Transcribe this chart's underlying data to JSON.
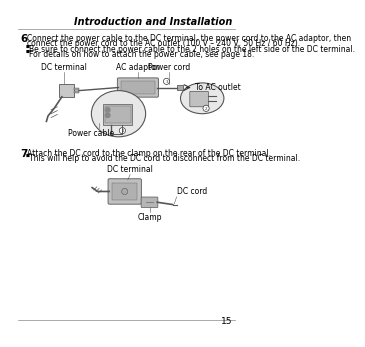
{
  "page_number": "15",
  "header_text": "Introduction and Installation",
  "background_color": "#ffffff",
  "text_color": "#000000",
  "gray_text": "#444444",
  "step6_number": "6",
  "step6_line1": "Connect the power cable to the DC terminal, the power cord to the AC adaptor, then",
  "step6_line2": "connect the power cord to the AC outlet (100 V – 240 V, 50 Hz / 60 Hz).",
  "step6_bullet1": "Be sure to connect the power cable to the 2 holes on the left side of the DC terminal.",
  "step6_bullet2": "For details on how to attach the power cable, see page 18.",
  "step7_number": "7",
  "step7_text": "Attach the DC cord to the clamp on the rear of the DC terminal.",
  "step7_bullet1": "This will help to avoid the DC cord to disconnect from the DC terminal.",
  "label_dc_terminal": "DC terminal",
  "label_ac_adaptor": "AC adaptor",
  "label_power_cord": "Power cord",
  "label_to_ac_outlet": "To AC outlet",
  "label_power_cable": "Power cable",
  "label_dc_terminal2": "DC terminal",
  "label_dc_cord": "DC cord",
  "label_clamp": "Clamp",
  "body_fontsize": 5.5,
  "label_fontsize": 5.5,
  "step_fontsize": 7.5,
  "header_fontsize": 7.0,
  "page_num_fontsize": 6.5
}
